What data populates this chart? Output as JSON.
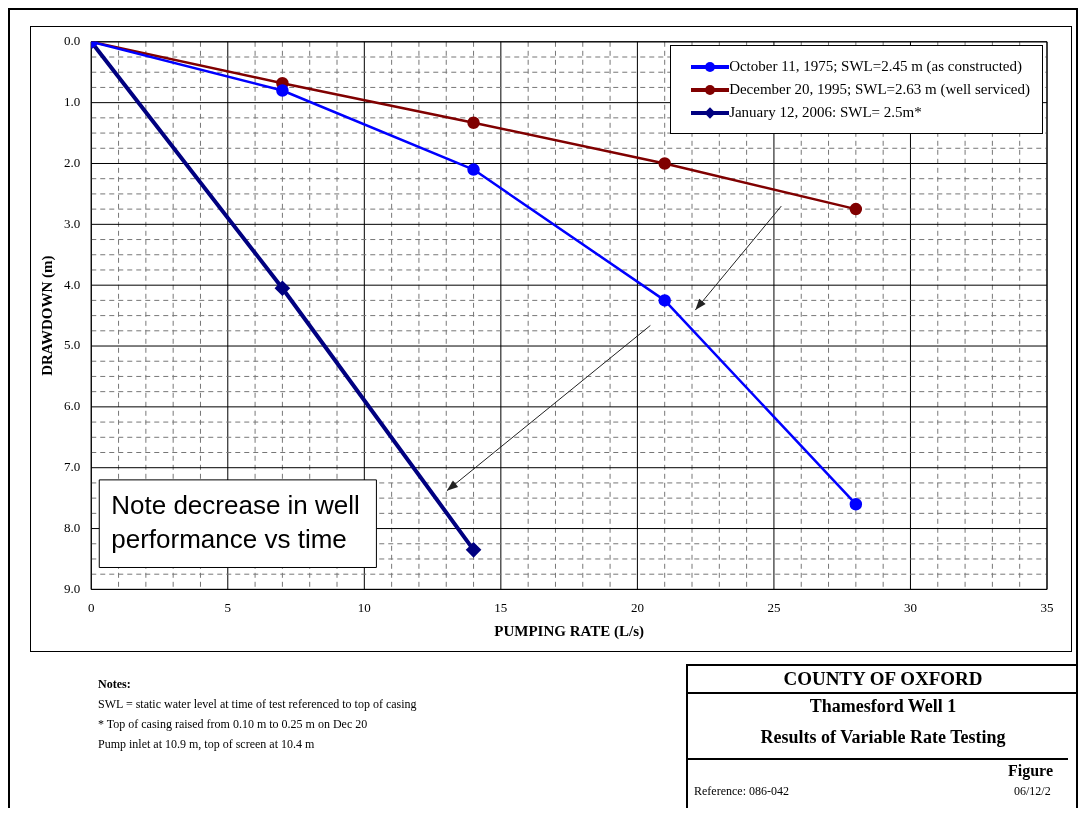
{
  "chart_data": {
    "type": "line",
    "title": "COUNTY OF OXFORD",
    "subtitle": "Thamesford Well 1",
    "xlabel": "PUMPING RATE (L/s)",
    "ylabel": "DRAWDOWN (m)",
    "series": [
      {
        "name": "October 11, 1975; SWL=2.45 m (as constructed)",
        "color": "#0000ff",
        "marker": "circle",
        "x": [
          0,
          7,
          14,
          21,
          28
        ],
        "values": [
          0,
          0.8,
          2.1,
          4.25,
          7.6
        ]
      },
      {
        "name": "December 20, 1995; SWL=2.63 m (well serviced)",
        "color": "#800000",
        "marker": "circle",
        "x": [
          0,
          7,
          14,
          21,
          28
        ],
        "values": [
          0,
          0.68,
          1.33,
          2.0,
          2.75
        ]
      },
      {
        "name": "January 12, 2006: SWL= 2.5m*",
        "color": "#000080",
        "marker": "diamond",
        "x": [
          0,
          7,
          14
        ],
        "values": [
          0,
          4.05,
          8.35
        ]
      }
    ],
    "xlim": [
      0,
      35
    ],
    "xticks": [
      0,
      {
        "value": 1,
        "label": null
      },
      {
        "value": 2,
        "label": null
      },
      {
        "value": 3,
        "label": null
      },
      {
        "value": 4,
        "label": null
      },
      5,
      {
        "value": 6,
        "label": null
      },
      {
        "value": 7,
        "label": null
      },
      {
        "value": 8,
        "label": null
      },
      {
        "value": 9,
        "label": null
      },
      10,
      {
        "value": 11,
        "label": null
      },
      {
        "value": 12,
        "label": null
      },
      {
        "value": 13,
        "label": null
      },
      {
        "value": 14,
        "label": null
      },
      15,
      {
        "value": 16,
        "label": null
      },
      {
        "value": 17,
        "label": null
      },
      {
        "value": 18,
        "label": null
      },
      {
        "value": 19,
        "label": null
      },
      20,
      {
        "value": 21,
        "label": null
      },
      {
        "value": 22,
        "label": null
      },
      {
        "value": 23,
        "label": null
      },
      {
        "value": 24,
        "label": null
      },
      25,
      {
        "value": 26,
        "label": null
      },
      {
        "value": 27,
        "label": null
      },
      {
        "value": 28,
        "label": null
      },
      {
        "value": 29,
        "label": null
      },
      30,
      {
        "value": 31,
        "label": null
      },
      {
        "value": 32,
        "label": null
      },
      {
        "value": 33,
        "label": null
      },
      {
        "value": 34,
        "label": null
      },
      35
    ],
    "ylim": [
      9,
      0
    ],
    "yticks": [
      {
        "value": 0,
        "label": "0.0"
      },
      {
        "value": 0.25,
        "label": null
      },
      {
        "value": 0.5,
        "label": null
      },
      {
        "value": 0.75,
        "label": null
      },
      {
        "value": 1,
        "label": "1.0"
      },
      {
        "value": 1.25,
        "label": null
      },
      {
        "value": 1.5,
        "label": null
      },
      {
        "value": 1.75,
        "label": null
      },
      {
        "value": 2,
        "label": "2.0"
      },
      {
        "value": 2.25,
        "label": null
      },
      {
        "value": 2.5,
        "label": null
      },
      {
        "value": 2.75,
        "label": null
      },
      {
        "value": 3,
        "label": "3.0"
      },
      {
        "value": 3.25,
        "label": null
      },
      {
        "value": 3.5,
        "label": null
      },
      {
        "value": 3.75,
        "label": null
      },
      {
        "value": 4,
        "label": "4.0"
      },
      {
        "value": 4.25,
        "label": null
      },
      {
        "value": 4.5,
        "label": null
      },
      {
        "value": 4.75,
        "label": null
      },
      {
        "value": 5,
        "label": "5.0"
      },
      {
        "value": 5.25,
        "label": null
      },
      {
        "value": 5.5,
        "label": null
      },
      {
        "value": 5.75,
        "label": null
      },
      {
        "value": 6,
        "label": "6.0"
      },
      {
        "value": 6.25,
        "label": null
      },
      {
        "value": 6.5,
        "label": null
      },
      {
        "value": 6.75,
        "label": null
      },
      {
        "value": 7,
        "label": "7.0"
      },
      {
        "value": 7.25,
        "label": null
      },
      {
        "value": 7.5,
        "label": null
      },
      {
        "value": 7.75,
        "label": null
      },
      {
        "value": 8,
        "label": "8.0"
      },
      {
        "value": 8.25,
        "label": null
      },
      {
        "value": 8.5,
        "label": null
      },
      {
        "value": 8.75,
        "label": null
      },
      {
        "value": 9,
        "label": "9.0"
      }
    ],
    "grid": true,
    "legend": "top right",
    "line_style": "solid",
    "annotations": [
      "Note decrease in well performance vs time",
      "Notes:",
      "SWL = static water level at time of test referenced to top of casing",
      "* Top of casing raised from 0.10 m to 0.25 m on Dec 20",
      "Pump inlet at 10.9 m, top of screen at 10.4 m",
      "Results of Variable Rate Testing",
      "Figure",
      "Reference: 086-042",
      "06/12/2"
    ]
  }
}
